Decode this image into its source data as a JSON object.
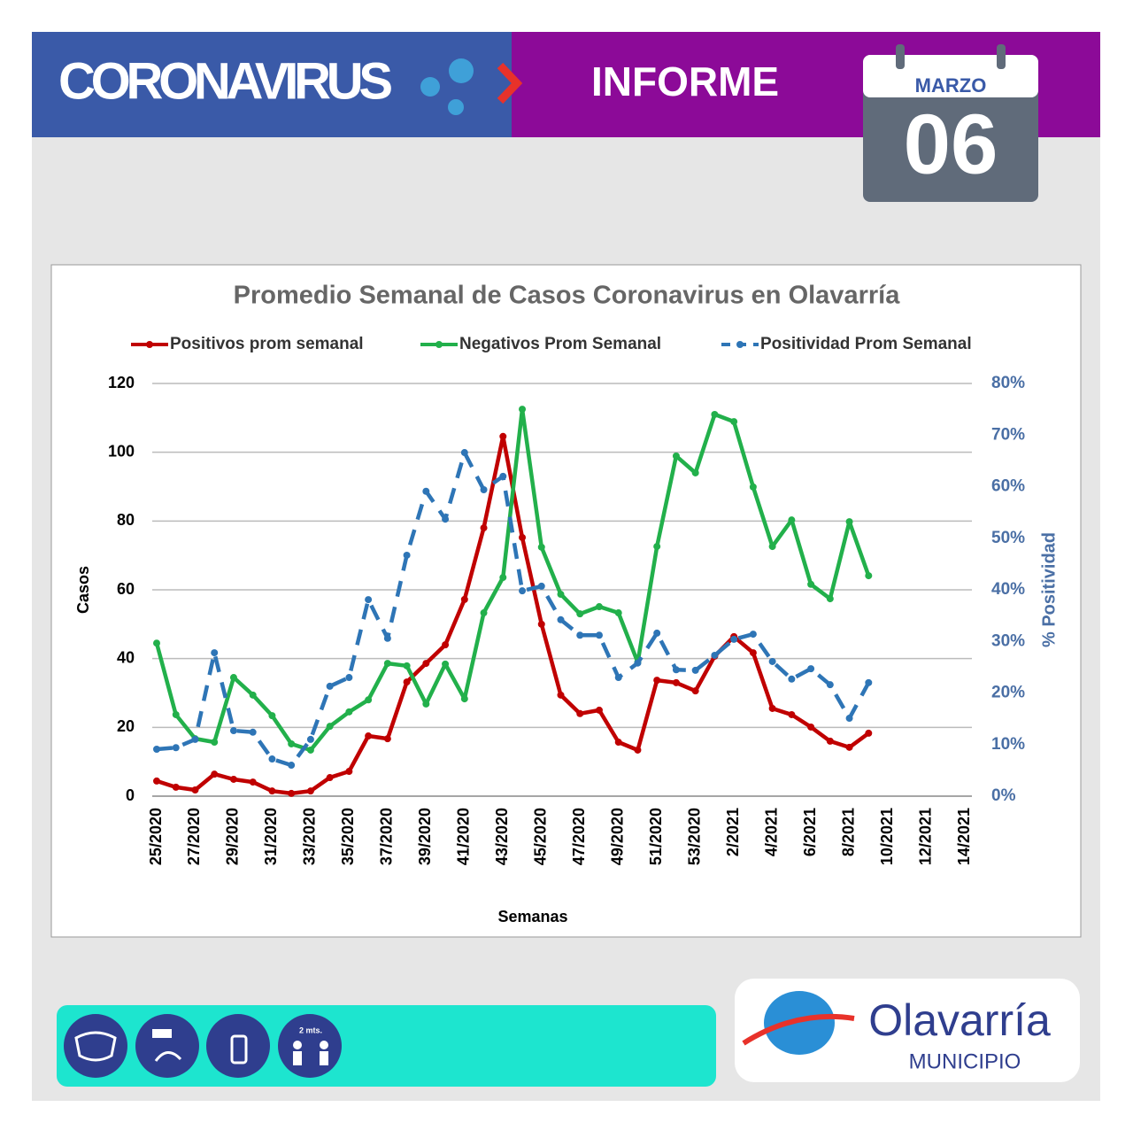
{
  "header": {
    "left_title": "CORONAVIRUS",
    "right_title": "INFORME",
    "month": "MARZO",
    "day": "06"
  },
  "footer": {
    "icon_label": "2 mts.",
    "logo_name": "Olavarría",
    "logo_sub": "MUNICIPIO"
  },
  "chart_data": {
    "type": "line",
    "title": "Promedio Semanal de Casos Coronavirus en Olavarría",
    "x_label": "Semanas",
    "y_label": "Casos",
    "y2_label": "% Positividad",
    "categories": [
      "25/2020",
      null,
      "27/2020",
      null,
      "29/2020",
      null,
      "31/2020",
      null,
      "33/2020",
      null,
      "35/2020",
      null,
      "37/2020",
      null,
      "39/2020",
      null,
      "41/2020",
      null,
      "43/2020",
      null,
      "45/2020",
      null,
      "47/2020",
      null,
      "49/2020",
      null,
      "51/2020",
      null,
      "53/2020",
      null,
      "2/2021",
      null,
      "4/2021",
      null,
      "6/2021",
      null,
      "8/2021",
      null,
      "10/2021",
      null,
      "12/2021",
      null,
      "14/2021"
    ],
    "ylim": [
      0,
      120
    ],
    "yticks": [
      0,
      20,
      40,
      60,
      80,
      100,
      120
    ],
    "y2lim": [
      0,
      80
    ],
    "y2ticks": [
      {
        "value": 0,
        "label": "0%"
      },
      {
        "value": 10,
        "label": "10%"
      },
      {
        "value": 20,
        "label": "20%"
      },
      {
        "value": 30,
        "label": "30%"
      },
      {
        "value": 40,
        "label": "40%"
      },
      {
        "value": 50,
        "label": "50%"
      },
      {
        "value": 60,
        "label": "60%"
      },
      {
        "value": 70,
        "label": "70%"
      },
      {
        "value": 80,
        "label": "80%"
      }
    ],
    "grid": true,
    "series": [
      {
        "name": "Positivos prom semanal",
        "color": "#c00000",
        "dashed": false,
        "values": [
          4.4,
          2.6,
          1.8,
          6.4,
          4.9,
          4.1,
          1.5,
          0.8,
          1.5,
          5.4,
          7.2,
          17.5,
          16.7,
          33.2,
          38.6,
          44,
          57.2,
          78,
          104.6,
          75.2,
          50,
          29.4,
          24,
          25,
          15.7,
          13.4,
          33.7,
          33,
          30.6,
          40.7,
          46.4,
          41.7,
          25.5,
          23.7,
          20.1,
          16,
          14.2,
          18.3,
          null,
          null,
          null,
          null,
          null
        ]
      },
      {
        "name": "Negativos Prom Semanal",
        "color": "#22b04b",
        "dashed": false,
        "values": [
          44.5,
          23.7,
          16.7,
          15.7,
          34.5,
          29.4,
          23.4,
          15.2,
          13.4,
          20.3,
          24.5,
          28,
          38.6,
          37.9,
          26.8,
          38.4,
          28.3,
          53.3,
          63.6,
          112.5,
          72.4,
          58.7,
          53,
          55.1,
          53.3,
          38.9,
          72.6,
          98.9,
          94,
          111,
          108.9,
          89.9,
          72.6,
          80.3,
          61.6,
          57.4,
          79.8,
          64.1,
          null,
          null,
          null,
          null,
          null
        ]
      },
      {
        "name": "Positividad Prom Semanal",
        "color": "#2e75b6",
        "dashed": true,
        "axis": "y2",
        "values": [
          9.1,
          9.4,
          11,
          27.8,
          12.7,
          12.4,
          7.2,
          6,
          11,
          21.3,
          23,
          38.1,
          30.6,
          46.7,
          59.1,
          53.7,
          66.6,
          59.4,
          62,
          39.8,
          40.7,
          34.2,
          31.2,
          31.2,
          23,
          25.8,
          31.6,
          24.5,
          24.4,
          27.3,
          30.4,
          31.4,
          26.1,
          22.7,
          24.7,
          21.6,
          15.1,
          22,
          null,
          null,
          null,
          null,
          null
        ]
      }
    ]
  }
}
